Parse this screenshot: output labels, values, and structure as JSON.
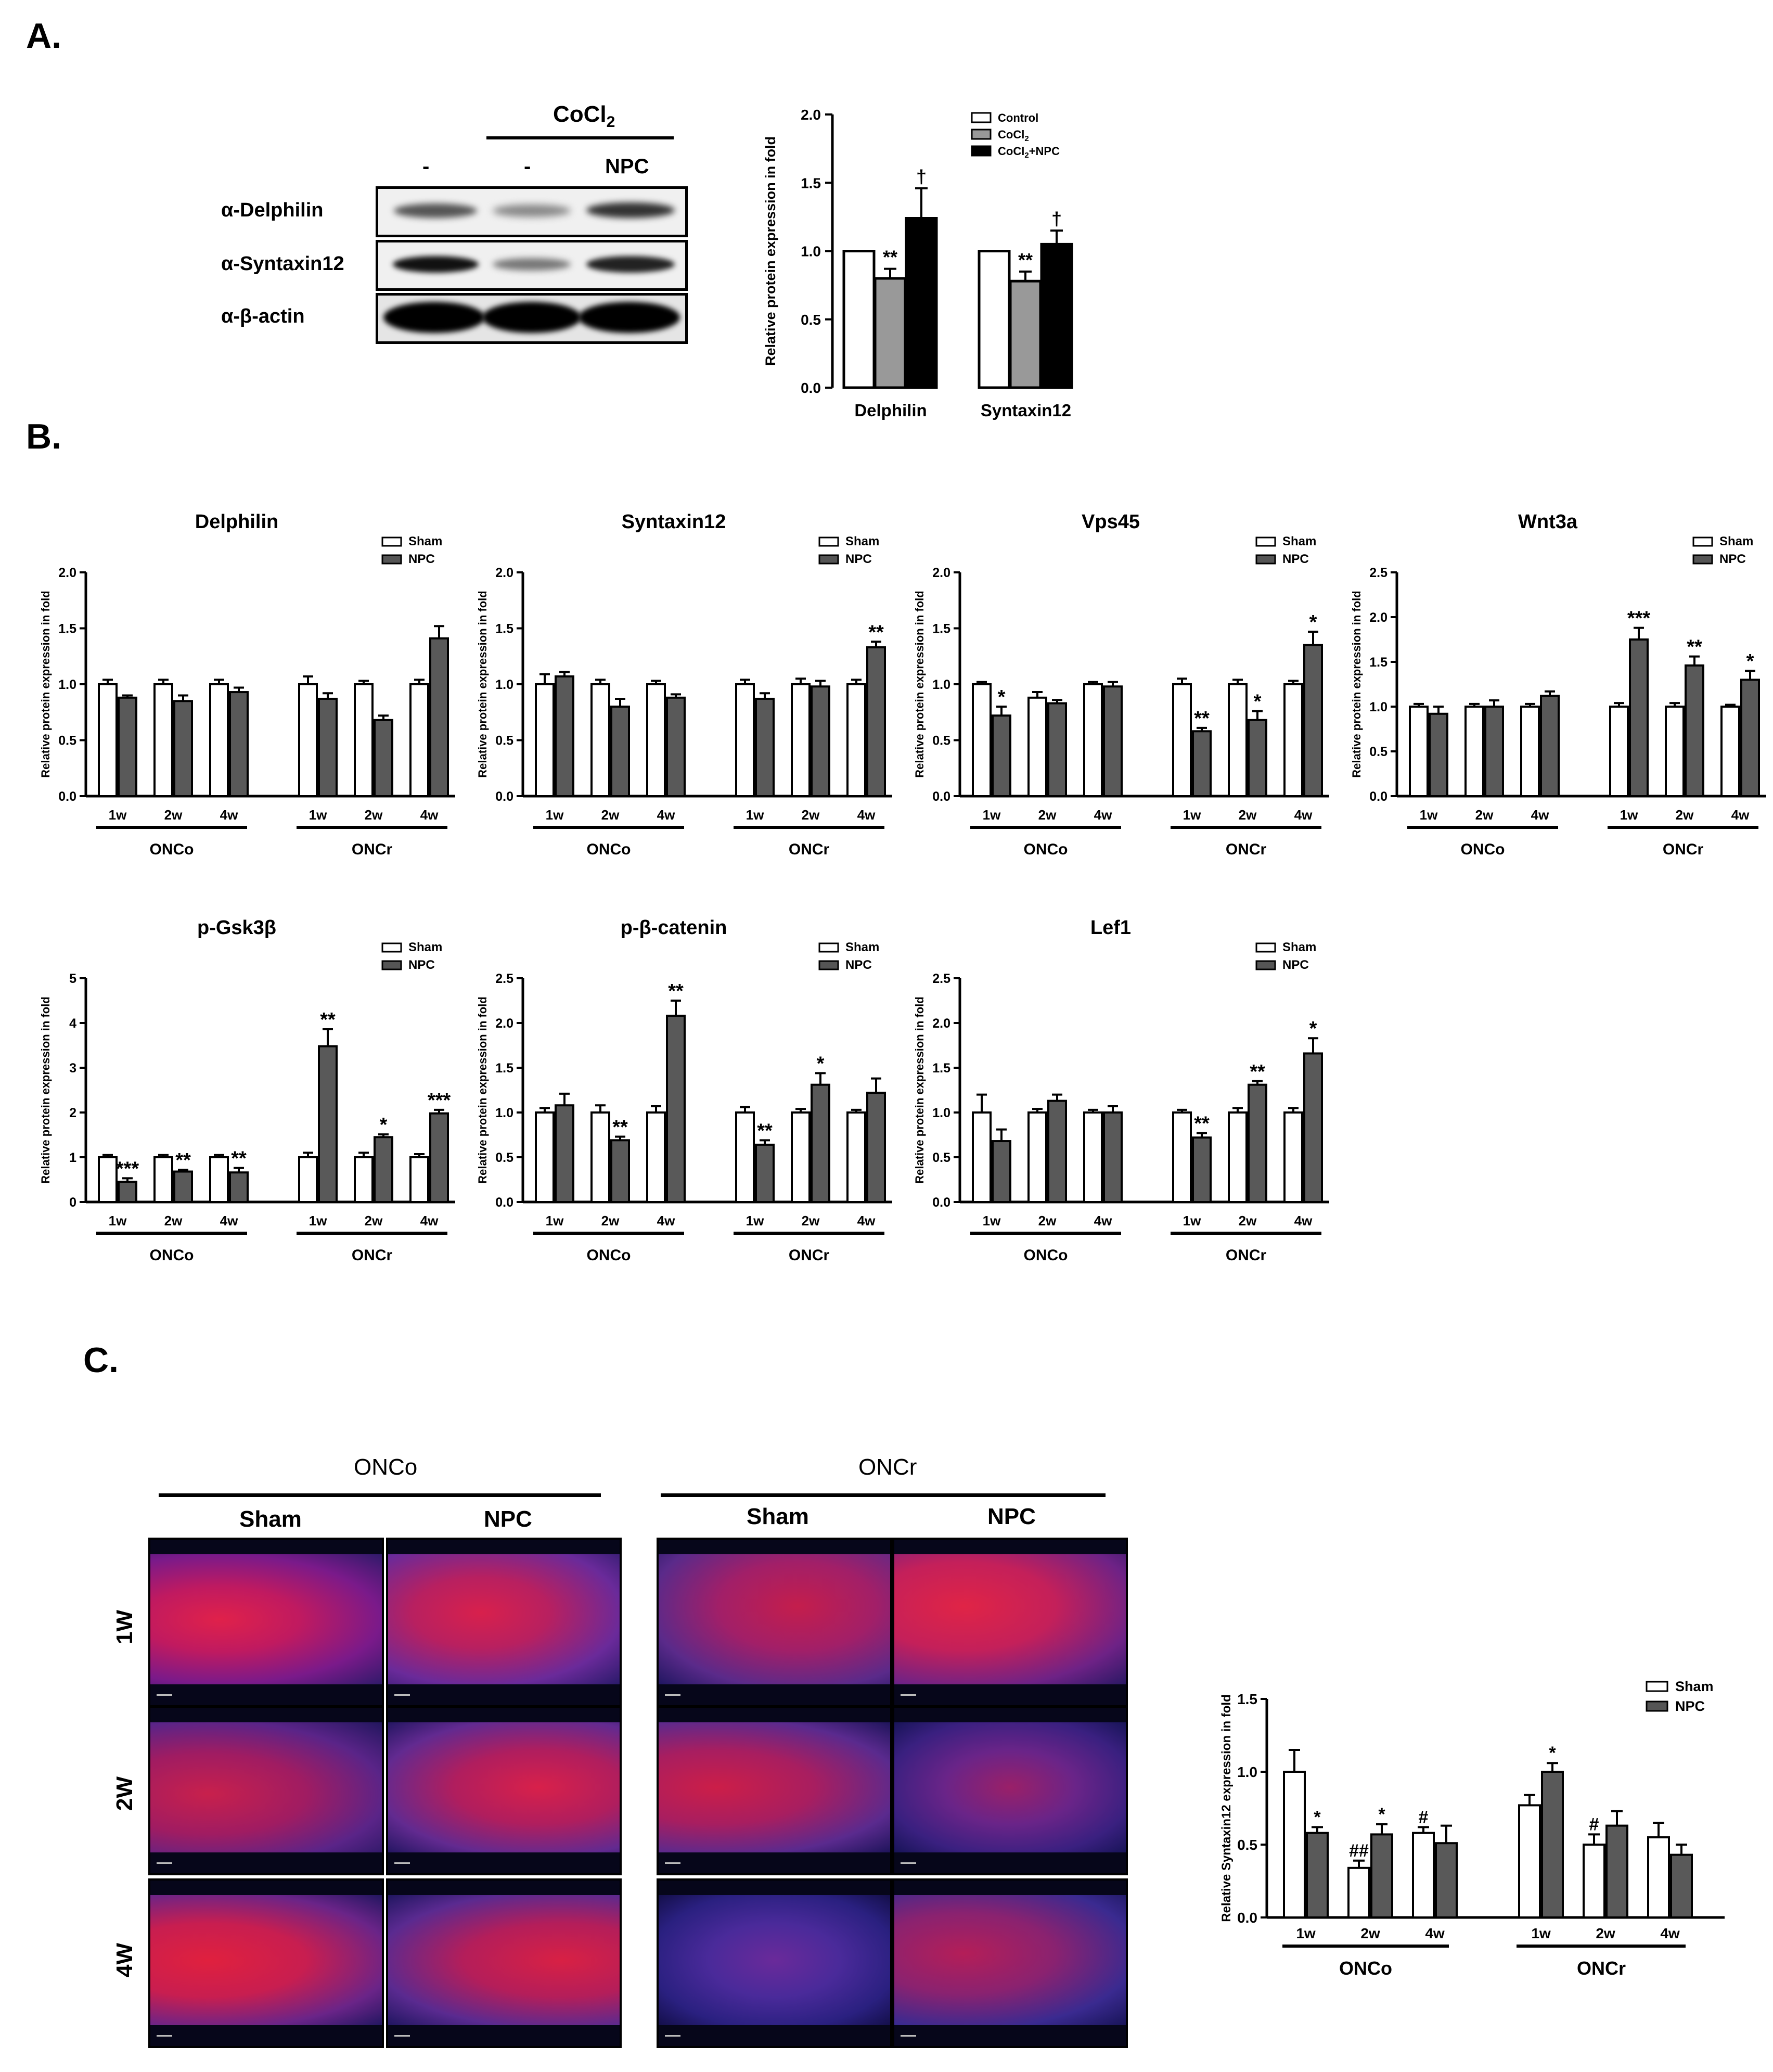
{
  "panels": {
    "a": "A.",
    "b": "B.",
    "c": "C."
  },
  "western_blot": {
    "treatment_header_main": "CoCl",
    "treatment_header_sub": "2",
    "lane_labels": [
      "-",
      "-",
      "NPC"
    ],
    "row_labels": [
      "α-Delphilin",
      "α-Syntaxin12",
      "α-β-actin"
    ]
  },
  "chart_A": {
    "type": "bar",
    "ylabel": "Relative protein expression in fold",
    "ylim": [
      0,
      2.0
    ],
    "yticks": [
      "0.0",
      "0.5",
      "1.0",
      "1.5",
      "2.0"
    ],
    "categories": [
      "Delphilin",
      "Syntaxin12"
    ],
    "legend": {
      "control": "Control",
      "cocl2": "CoCl",
      "cocl2_sub": "2",
      "cocl2_npc_a": "CoCl",
      "cocl2_npc_sub": "2",
      "cocl2_npc_b": "+NPC"
    },
    "series": [
      {
        "key": "control",
        "color": "#ffffff",
        "values": [
          1.0,
          1.0
        ],
        "errors": [
          0,
          0
        ],
        "marks": [
          "",
          ""
        ]
      },
      {
        "key": "cocl2",
        "color": "#999999",
        "values": [
          0.8,
          0.78
        ],
        "errors": [
          0.07,
          0.07
        ],
        "marks": [
          "**",
          "**"
        ]
      },
      {
        "key": "cocl2_npc",
        "color": "#000000",
        "values": [
          1.24,
          1.05
        ],
        "errors": [
          0.22,
          0.1
        ],
        "marks": [
          "†",
          "†"
        ]
      }
    ]
  },
  "b_charts": [
    {
      "title": "Delphilin",
      "ymax": 2.0,
      "yticks": [
        "0.0",
        "0.5",
        "1.0",
        "1.5",
        "2.0"
      ],
      "sham": [
        1.0,
        1.0,
        1.0,
        1.0,
        1.0,
        1.0
      ],
      "sham_err": [
        0.04,
        0.04,
        0.04,
        0.07,
        0.03,
        0.04
      ],
      "npc": [
        0.88,
        0.85,
        0.93,
        0.87,
        0.68,
        1.41
      ],
      "npc_err": [
        0.02,
        0.05,
        0.04,
        0.05,
        0.04,
        0.11
      ],
      "marks": [
        "",
        "",
        "",
        "",
        "",
        ""
      ]
    },
    {
      "title": "Syntaxin12",
      "ymax": 2.0,
      "yticks": [
        "0.0",
        "0.5",
        "1.0",
        "1.5",
        "2.0"
      ],
      "sham": [
        1.0,
        1.0,
        1.0,
        1.0,
        1.0,
        1.0
      ],
      "sham_err": [
        0.09,
        0.04,
        0.03,
        0.04,
        0.05,
        0.04
      ],
      "npc": [
        1.07,
        0.8,
        0.88,
        0.87,
        0.98,
        1.33
      ],
      "npc_err": [
        0.04,
        0.07,
        0.03,
        0.05,
        0.05,
        0.05
      ],
      "marks": [
        "",
        "",
        "",
        "",
        "",
        "**"
      ]
    },
    {
      "title": "Vps45",
      "ymax": 2.0,
      "yticks": [
        "0.0",
        "0.5",
        "1.0",
        "1.5",
        "2.0"
      ],
      "sham": [
        1.0,
        0.88,
        1.0,
        1.0,
        1.0,
        1.0
      ],
      "sham_err": [
        0.02,
        0.05,
        0.02,
        0.05,
        0.04,
        0.03
      ],
      "npc": [
        0.72,
        0.83,
        0.98,
        0.58,
        0.68,
        1.35
      ],
      "npc_err": [
        0.08,
        0.03,
        0.04,
        0.03,
        0.08,
        0.12
      ],
      "marks": [
        "*",
        "",
        "",
        "**",
        "*",
        "*"
      ]
    },
    {
      "title": "Wnt3a",
      "ymax": 2.5,
      "yticks": [
        "0.0",
        "0.5",
        "1.0",
        "1.5",
        "2.0",
        "2.5"
      ],
      "sham": [
        1.0,
        1.0,
        1.0,
        1.0,
        1.0,
        1.0
      ],
      "sham_err": [
        0.03,
        0.03,
        0.03,
        0.04,
        0.04,
        0.02
      ],
      "npc": [
        0.92,
        1.0,
        1.12,
        1.75,
        1.46,
        1.3
      ],
      "npc_err": [
        0.08,
        0.07,
        0.05,
        0.13,
        0.1,
        0.1
      ],
      "marks": [
        "",
        "",
        "",
        "***",
        "**",
        "*"
      ]
    },
    {
      "title": "p-Gsk3β",
      "ymax": 5,
      "yticks": [
        "0",
        "1",
        "2",
        "3",
        "4",
        "5"
      ],
      "sham": [
        1.0,
        1.0,
        1.0,
        1.0,
        1.0,
        1.0
      ],
      "sham_err": [
        0.05,
        0.05,
        0.05,
        0.1,
        0.1,
        0.07
      ],
      "npc": [
        0.45,
        0.68,
        0.66,
        3.48,
        1.45,
        1.98
      ],
      "npc_err": [
        0.08,
        0.04,
        0.1,
        0.38,
        0.06,
        0.08
      ],
      "marks": [
        "***",
        "**",
        "**",
        "**",
        "*",
        "***"
      ]
    },
    {
      "title": "p-β-catenin",
      "ymax": 2.5,
      "yticks": [
        "0.0",
        "0.5",
        "1.0",
        "1.5",
        "2.0",
        "2.5"
      ],
      "sham": [
        1.0,
        1.0,
        1.0,
        1.0,
        1.0,
        1.0
      ],
      "sham_err": [
        0.05,
        0.08,
        0.07,
        0.06,
        0.04,
        0.03
      ],
      "npc": [
        1.08,
        0.69,
        2.08,
        0.64,
        1.31,
        1.22
      ],
      "npc_err": [
        0.13,
        0.04,
        0.17,
        0.05,
        0.13,
        0.16
      ],
      "marks": [
        "",
        "**",
        "**",
        "**",
        "*",
        ""
      ]
    },
    {
      "title": "Lef1",
      "ymax": 2.5,
      "yticks": [
        "0.0",
        "0.5",
        "1.0",
        "1.5",
        "2.0",
        "2.5"
      ],
      "sham": [
        1.0,
        1.0,
        1.0,
        1.0,
        1.0,
        1.0
      ],
      "sham_err": [
        0.2,
        0.04,
        0.03,
        0.03,
        0.05,
        0.05
      ],
      "npc": [
        0.68,
        1.13,
        1.0,
        0.72,
        1.31,
        1.66
      ],
      "npc_err": [
        0.13,
        0.07,
        0.07,
        0.05,
        0.04,
        0.17
      ],
      "marks": [
        "",
        "",
        "",
        "**",
        "**",
        "*"
      ]
    }
  ],
  "b_common": {
    "ylabel": "Relative protein expression in fold",
    "xticks": [
      "1w",
      "2w",
      "4w",
      "1w",
      "2w",
      "4w"
    ],
    "groups": [
      "ONCo",
      "ONCr"
    ],
    "legend": [
      "Sham",
      "NPC"
    ]
  },
  "micro": {
    "group_labels": [
      "ONCo",
      "ONCr"
    ],
    "column_labels": [
      "Sham",
      "NPC",
      "Sham",
      "NPC"
    ],
    "row_labels": [
      "1W",
      "2W",
      "4W"
    ]
  },
  "chart_C": {
    "type": "bar",
    "ylabel": "Relative Syntaxin12 expression in fold",
    "ylim": [
      0,
      1.5
    ],
    "yticks": [
      "0.0",
      "0.5",
      "1.0",
      "1.5"
    ],
    "xticks": [
      "1w",
      "2w",
      "4w",
      "1w",
      "2w",
      "4w"
    ],
    "groups": [
      "ONCo",
      "ONCr"
    ],
    "legend": [
      "Sham",
      "NPC"
    ],
    "sham": [
      1.0,
      0.34,
      0.58,
      0.77,
      0.5,
      0.55
    ],
    "sham_err": [
      0.15,
      0.05,
      0.04,
      0.07,
      0.07,
      0.1
    ],
    "npc": [
      0.58,
      0.57,
      0.51,
      1.0,
      0.63,
      0.43
    ],
    "npc_err": [
      0.04,
      0.07,
      0.12,
      0.06,
      0.1,
      0.07
    ],
    "sham_marks": [
      "",
      "##",
      "#",
      "",
      "#",
      ""
    ],
    "npc_marks": [
      "*",
      "*",
      "",
      "*",
      "",
      ""
    ]
  }
}
